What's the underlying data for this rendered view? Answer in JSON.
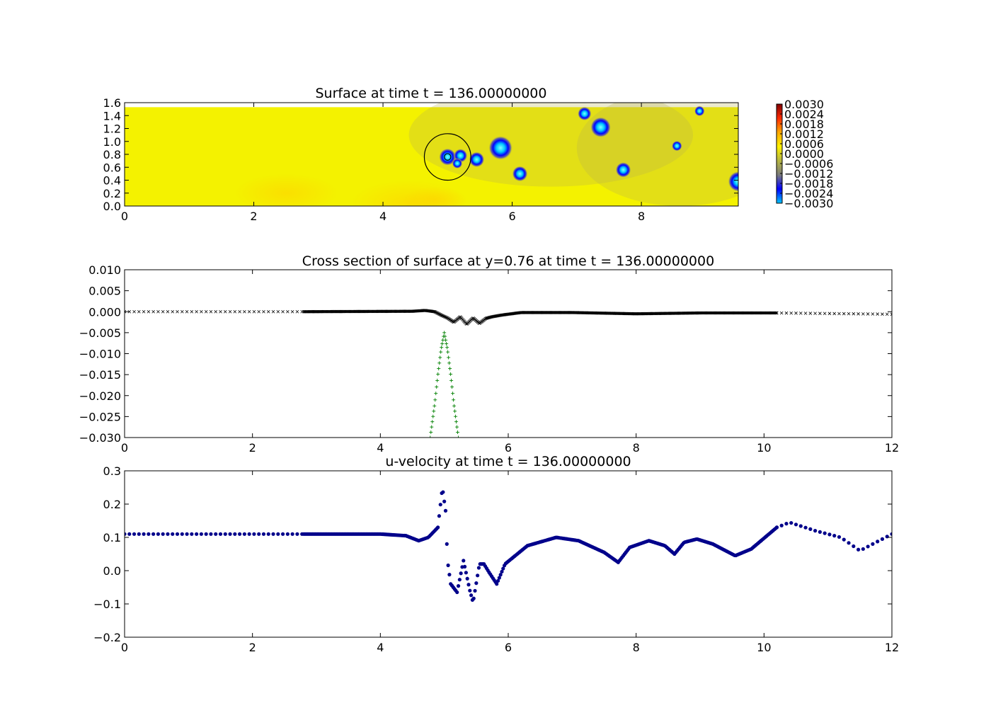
{
  "chart_data": [
    {
      "type": "heatmap",
      "title": "Surface at time t =   136.00000000",
      "xlim": [
        0,
        9.5
      ],
      "ylim": [
        0,
        1.6
      ],
      "xticks": [
        "0",
        "2",
        "4",
        "6",
        "8"
      ],
      "yticks": [
        "0.0",
        "0.2",
        "0.4",
        "0.6",
        "0.8",
        "1.0",
        "1.2",
        "1.4",
        "1.6"
      ],
      "domain_ymax": 1.53,
      "background_color": "#f4f200",
      "colorbar": {
        "range": [
          -0.003,
          0.003
        ],
        "ticks": [
          "0.0030",
          "0.0024",
          "0.0018",
          "0.0012",
          "0.0006",
          "0.0000",
          "−0.0006",
          "−0.0012",
          "−0.0018",
          "−0.0024",
          "−0.0030"
        ],
        "colors": [
          "#7f0000",
          "#ff2a00",
          "#ffaa00",
          "#fff200",
          "#b5b542",
          "#7a7a7a",
          "#0000ff",
          "#00c8ff"
        ]
      },
      "spots": [
        {
          "x": 5.0,
          "y": 0.76,
          "r": 0.1
        },
        {
          "x": 5.2,
          "y": 0.78,
          "r": 0.08
        },
        {
          "x": 5.15,
          "y": 0.66,
          "r": 0.06
        },
        {
          "x": 5.45,
          "y": 0.72,
          "r": 0.09
        },
        {
          "x": 5.82,
          "y": 0.9,
          "r": 0.14
        },
        {
          "x": 6.12,
          "y": 0.5,
          "r": 0.09
        },
        {
          "x": 7.12,
          "y": 1.43,
          "r": 0.08
        },
        {
          "x": 7.37,
          "y": 1.22,
          "r": 0.12
        },
        {
          "x": 7.72,
          "y": 0.56,
          "r": 0.09
        },
        {
          "x": 8.55,
          "y": 0.93,
          "r": 0.06
        },
        {
          "x": 8.9,
          "y": 1.47,
          "r": 0.06
        },
        {
          "x": 9.5,
          "y": 0.38,
          "r": 0.12
        }
      ],
      "circle": {
        "x": 5.0,
        "y": 0.76,
        "r": 0.36
      },
      "small_circle": {
        "x": 5.0,
        "y": 0.76,
        "r": 0.05
      }
    },
    {
      "type": "scatter",
      "title": "Cross section of surface at y=0.76 at time t =   136.00000000",
      "xlim": [
        0,
        12
      ],
      "ylim": [
        -0.03,
        0.01
      ],
      "xticks": [
        "0",
        "2",
        "4",
        "6",
        "8",
        "10",
        "12"
      ],
      "yticks": [
        "0.010",
        "0.005",
        "0.000",
        "−0.005",
        "−0.010",
        "−0.015",
        "−0.020",
        "−0.025",
        "−0.030"
      ],
      "series": [
        {
          "marker": "x",
          "color": "#000000",
          "x": [
            0,
            2.8,
            4.5,
            4.7,
            4.85,
            4.95,
            5.05,
            5.15,
            5.25,
            5.35,
            5.45,
            5.55,
            5.65,
            5.75,
            5.9,
            6.2,
            7,
            8,
            9,
            10.2,
            12
          ],
          "y": [
            0,
            0,
            0.0001,
            0.0003,
            0,
            -0.0008,
            -0.0015,
            -0.0025,
            -0.0012,
            -0.003,
            -0.0015,
            -0.0028,
            -0.0016,
            -0.0012,
            -0.0008,
            -0.0002,
            -0.0002,
            -0.0005,
            -0.0003,
            -0.0003,
            -0.0006
          ]
        },
        {
          "marker": "+",
          "color": "#008000",
          "x": [
            4.78,
            4.85,
            4.9,
            4.95,
            5.0,
            5.05,
            5.1,
            5.15,
            5.22
          ],
          "y": [
            -0.03,
            -0.022,
            -0.015,
            -0.009,
            -0.005,
            -0.009,
            -0.015,
            -0.022,
            -0.03
          ]
        }
      ]
    },
    {
      "type": "scatter",
      "title": "u-velocity at time t =   136.00000000",
      "xlim": [
        0,
        12
      ],
      "ylim": [
        -0.2,
        0.3
      ],
      "xticks": [
        "0",
        "2",
        "4",
        "6",
        "8",
        "10",
        "12"
      ],
      "yticks": [
        "0.3",
        "0.2",
        "0.1",
        "0.0",
        "−0.1",
        "−0.2"
      ],
      "series": [
        {
          "marker": "o",
          "color": "#00008b",
          "x": [
            0,
            2.8,
            4.0,
            4.4,
            4.6,
            4.75,
            4.9,
            4.97,
            5.02,
            5.05,
            5.1,
            5.2,
            5.3,
            5.4,
            5.45,
            5.55,
            5.62,
            5.7,
            5.82,
            5.95,
            6.3,
            6.75,
            7.1,
            7.5,
            7.72,
            7.9,
            8.2,
            8.45,
            8.6,
            8.75,
            8.95,
            9.2,
            9.55,
            9.8,
            10.2,
            10.4,
            10.8,
            11.2,
            11.5,
            12.0
          ],
          "y": [
            0.11,
            0.11,
            0.11,
            0.105,
            0.09,
            0.1,
            0.13,
            0.25,
            0.18,
            0.03,
            -0.04,
            -0.065,
            0.03,
            -0.06,
            -0.095,
            0.02,
            0.02,
            -0.005,
            -0.04,
            0.02,
            0.075,
            0.1,
            0.09,
            0.055,
            0.025,
            0.07,
            0.09,
            0.075,
            0.05,
            0.085,
            0.095,
            0.08,
            0.045,
            0.065,
            0.13,
            0.145,
            0.12,
            0.1,
            0.06,
            0.11
          ]
        }
      ]
    }
  ]
}
